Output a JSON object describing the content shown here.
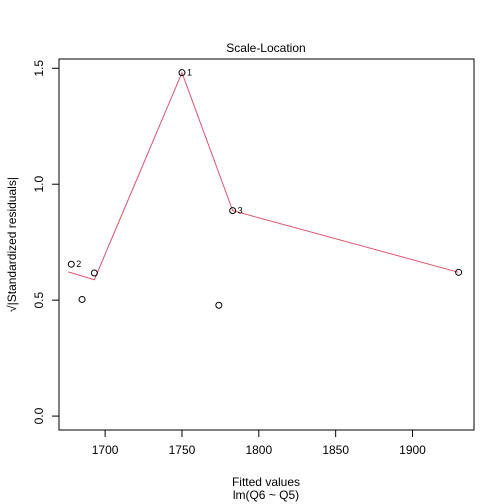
{
  "chart_data": {
    "type": "scatter",
    "title": "Scale-Location",
    "xlabel": "Fitted values",
    "subtitle": "lm(Q6 ~ Q5)",
    "ylabel": "√|Standardized residuals|",
    "xlim": [
      1670,
      1940
    ],
    "ylim": [
      -0.06,
      1.54
    ],
    "x_ticks": [
      1700,
      1750,
      1800,
      1850,
      1900
    ],
    "x_tick_labels": [
      "1700",
      "1750",
      "1800",
      "1850",
      "1900"
    ],
    "y_ticks": [
      0.0,
      0.5,
      1.0,
      1.5
    ],
    "y_tick_labels": [
      "0.0",
      "0.5",
      "1.0",
      "1.5"
    ],
    "points": [
      {
        "x": 1678,
        "y": 0.655,
        "label": "2"
      },
      {
        "x": 1685,
        "y": 0.503,
        "label": ""
      },
      {
        "x": 1693,
        "y": 0.617,
        "label": ""
      },
      {
        "x": 1750,
        "y": 1.481,
        "label": "1"
      },
      {
        "x": 1774,
        "y": 0.478,
        "label": ""
      },
      {
        "x": 1783,
        "y": 0.886,
        "label": "3"
      },
      {
        "x": 1930,
        "y": 0.62,
        "label": ""
      }
    ],
    "smooth_line": {
      "color": "#DF536B",
      "x": [
        1676,
        1693,
        1750,
        1783,
        1930
      ],
      "y": [
        0.622,
        0.588,
        1.481,
        0.886,
        0.62
      ]
    }
  }
}
